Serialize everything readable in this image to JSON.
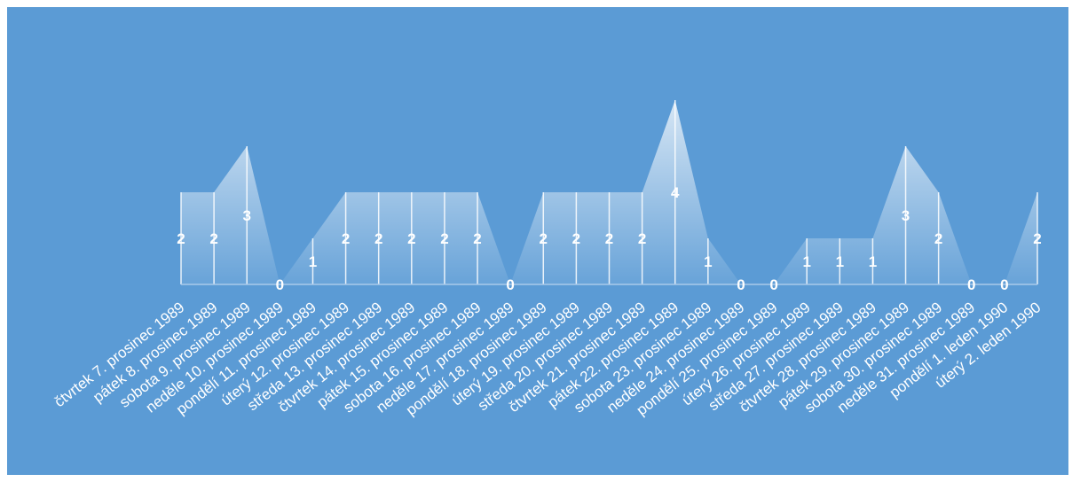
{
  "chart_data": {
    "type": "area",
    "title": "",
    "xlabel": "",
    "ylabel": "",
    "ylim": [
      0,
      4
    ],
    "grid": false,
    "legend": "none",
    "categories": [
      "čtvrtek 7. prosinec 1989",
      "pátek 8. prosinec 1989",
      "sobota 9. prosinec 1989",
      "neděle 10. prosinec 1989",
      "pondělí 11. prosinec 1989",
      "úterý 12. prosinec 1989",
      "středa 13. prosinec 1989",
      "čtvrtek 14. prosinec 1989",
      "pátek 15. prosinec 1989",
      "sobota 16. prosinec 1989",
      "neděle 17. prosinec 1989",
      "pondělí 18. prosinec 1989",
      "úterý 19. prosinec 1989",
      "středa 20. prosinec 1989",
      "čtvrtek 21. prosinec 1989",
      "pátek 22. prosinec 1989",
      "sobota 23. prosinec 1989",
      "neděle 24. prosinec 1989",
      "pondělí 25. prosinec 1989",
      "úterý 26. prosinec 1989",
      "středa 27. prosinec 1989",
      "čtvrtek 28. prosinec 1989",
      "pátek 29. prosinec 1989",
      "sobota 30. prosinec 1989",
      "neděle 31. prosinec 1989",
      "pondělí 1. leden 1990",
      "úterý 2. leden 1990"
    ],
    "values": [
      2,
      2,
      3,
      0,
      1,
      2,
      2,
      2,
      2,
      2,
      0,
      2,
      2,
      2,
      2,
      4,
      1,
      0,
      0,
      1,
      1,
      1,
      3,
      2,
      0,
      0,
      2
    ],
    "colors": {
      "background": "#5b9bd5",
      "area_top": "#ffffff",
      "axis": "#a9c9ea",
      "text": "#ffffff"
    }
  }
}
